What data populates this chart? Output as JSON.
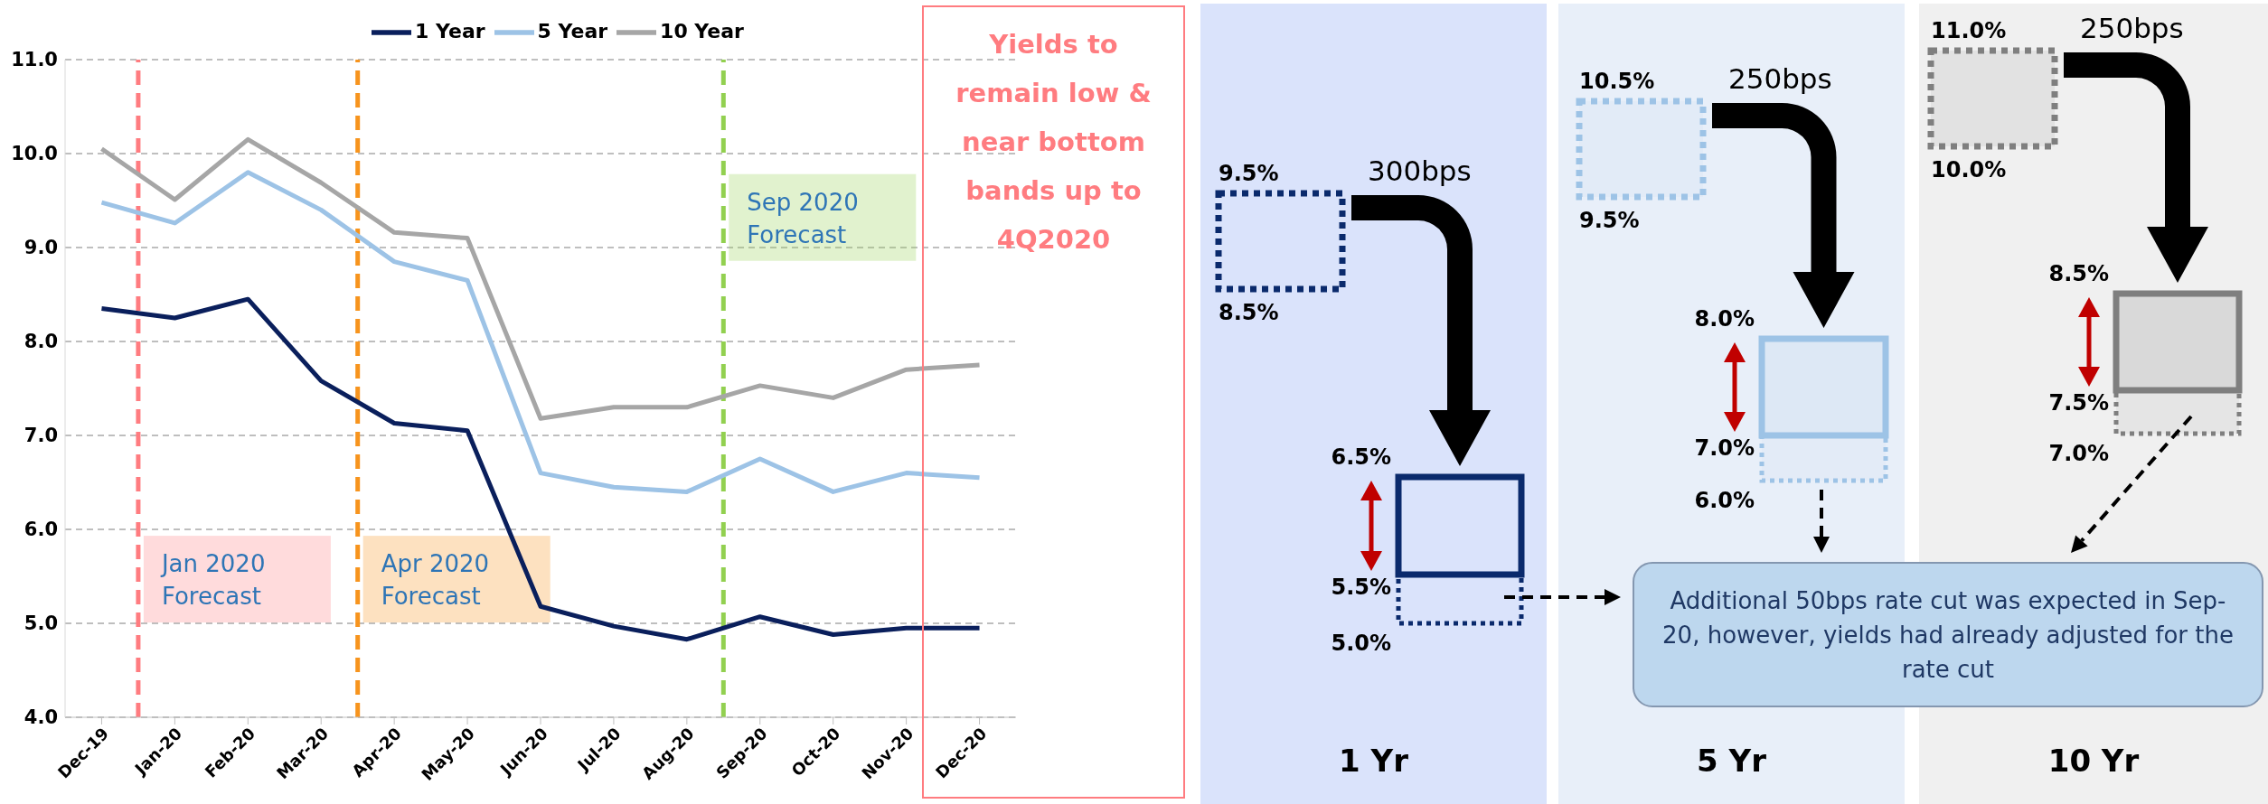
{
  "chart_data": [
    {
      "type": "line",
      "categories": [
        "Dec-19",
        "Jan-20",
        "Feb-20",
        "Mar-20",
        "Apr-20",
        "May-20",
        "Jun-20",
        "Jul-20",
        "Aug-20",
        "Sep-20",
        "Oct-20",
        "Nov-20",
        "Dec-20"
      ],
      "series": [
        {
          "name": "1 Year",
          "color": "#0a1f5c",
          "values": [
            8.35,
            8.25,
            8.45,
            7.58,
            7.13,
            7.05,
            5.18,
            4.97,
            4.83,
            5.07,
            4.88,
            4.95,
            4.95
          ]
        },
        {
          "name": "5 Year",
          "color": "#9dc3e6",
          "values": [
            9.48,
            9.26,
            9.8,
            9.4,
            8.85,
            8.65,
            6.6,
            6.45,
            6.4,
            6.75,
            6.4,
            6.6,
            6.55
          ]
        },
        {
          "name": "10 Year",
          "color": "#a6a6a6",
          "values": [
            10.05,
            9.51,
            10.15,
            9.69,
            9.16,
            9.1,
            7.18,
            7.3,
            7.3,
            7.53,
            7.4,
            7.7,
            7.75
          ]
        }
      ],
      "ylim": [
        4,
        11
      ],
      "yticks": [
        {
          "value": 4,
          "label": "4.0"
        },
        {
          "value": 5,
          "label": "5.0"
        },
        {
          "value": 6,
          "label": "6.0"
        },
        {
          "value": 7,
          "label": "7.0"
        },
        {
          "value": 8,
          "label": "8.0"
        },
        {
          "value": 9,
          "label": "9.0"
        },
        {
          "value": 10,
          "label": "10.0"
        },
        {
          "value": 11,
          "label": "11.0"
        }
      ],
      "grid": "y",
      "legend": "top",
      "marker": "none",
      "line_style": "solid",
      "ref_lines": [
        {
          "axis": "x",
          "value": "Jan-20",
          "label": "Jan 2020 Forecast",
          "color": "#ff7c80",
          "line_style": "dashed"
        },
        {
          "axis": "x",
          "value": "Apr-20",
          "label": "Apr 2020 Forecast",
          "color": "#f7941d",
          "line_style": "dashed"
        },
        {
          "axis": "x",
          "value": "Sep-20",
          "label": "Sep 2020 Forecast",
          "color": "#92d050",
          "line_style": "dashed"
        }
      ],
      "annotations": [
        "Yields to remain low & near bottom bands up to 4Q2020"
      ]
    },
    {
      "type": "other",
      "categories": [
        "1 Yr",
        "5 Yr",
        "10 Yr"
      ],
      "colors": [
        "#dae3fb",
        "#e8eff9",
        "#f0f0f0"
      ],
      "annotations": [
        "9.5%",
        "8.5%",
        "300bps",
        "6.5%",
        "5.5%",
        "5.0%",
        "10.5%",
        "9.5%",
        "250bps",
        "8.0%",
        "7.0%",
        "6.0%",
        "11.0%",
        "10.0%",
        "250bps",
        "8.5%",
        "7.5%",
        "7.0%",
        "Additional 50bps rate cut was expected in Sep-20, however, yields had already adjusted for the rate cut"
      ]
    }
  ]
}
